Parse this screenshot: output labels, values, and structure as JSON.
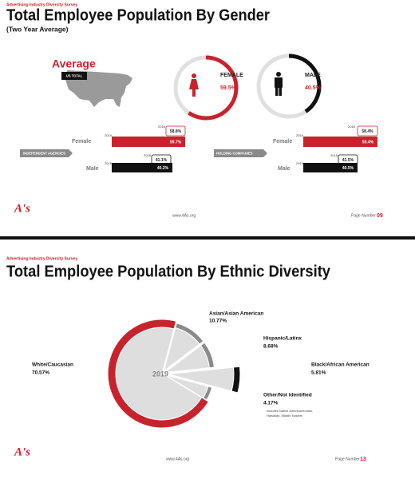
{
  "slides": [
    {
      "survey": "Advertising Industry Diversity Survey",
      "title": "Total Employee Population By Gender",
      "subtitle": "(Two Year Average)",
      "average": {
        "label": "Average",
        "tag": "US TOTAL",
        "female": {
          "label": "FEMALE",
          "value": "59.5%"
        },
        "male": {
          "label": "MALE",
          "value": "40.5%"
        }
      },
      "groups": [
        {
          "tag": "INDEPENDENT AGENCIES",
          "rows": [
            {
              "label": "Female",
              "y2018": "2018",
              "v2018": "58.8%",
              "y2019": "2019",
              "v2019": "59.7%"
            },
            {
              "label": "Male",
              "y2018": "2018",
              "v2018": "41.1%",
              "y2019": "2019",
              "v2019": "40.2%"
            }
          ]
        },
        {
          "tag": "HOLDING COMPANIES",
          "rows": [
            {
              "label": "Female",
              "y2018": "2018",
              "v2018": "58.4%",
              "y2019": "2019",
              "v2019": "59.4%"
            },
            {
              "label": "Male",
              "y2018": "2018",
              "v2018": "41.5%",
              "y2019": "2019",
              "v2019": "40.5%"
            }
          ]
        }
      ],
      "footer": {
        "logo": "A's",
        "url": "www.4As.org",
        "page_label": "Page Number",
        "page": "09"
      }
    },
    {
      "survey": "Advertising Industry Diversity Survey",
      "title": "Total Employee Population By Ethnic Diversity",
      "chart": {
        "center": "2019",
        "segments": [
          {
            "name": "White/Caucasian",
            "value": "70.57%"
          },
          {
            "name": "Asian/Asian American",
            "value": "10.77%"
          },
          {
            "name": "Hispanic/Latinx",
            "value": "8.68%"
          },
          {
            "name": "Black/African American",
            "value": "5.81%"
          },
          {
            "name": "Other/Not Identified",
            "value": "4.17%",
            "note_line1": "Includes Native American/Indian,",
            "note_line2": "Hawaiian, Middle Eastern"
          }
        ]
      },
      "footer": {
        "logo": "A's",
        "url": "www.4As.org",
        "page_label": "Page Number",
        "page": "13"
      }
    }
  ]
}
